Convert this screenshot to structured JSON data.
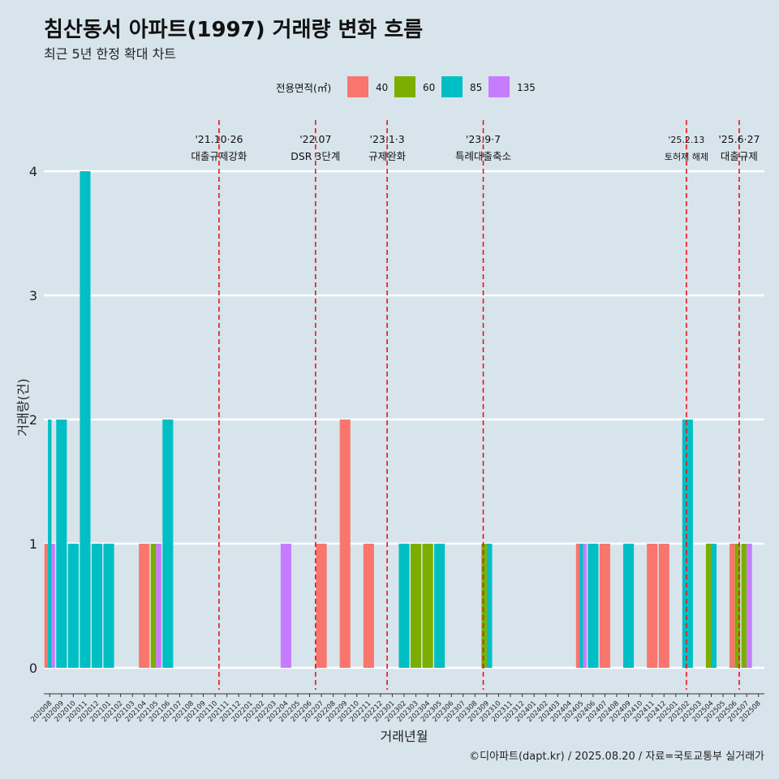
{
  "title": "침산동서 아파트(1997) 거래량 변화 흐름",
  "subtitle": "최근 5년 한정 확대 차트",
  "caption": "©디아파트(dapt.kr) / 2025.08.20 / 자료=국토교통부 실거래가",
  "legend_title": "전용면적(㎡)",
  "chart_data": {
    "type": "bar",
    "xlabel": "거래년월",
    "ylabel": "거래량(건)",
    "ylim": [
      0,
      4
    ],
    "yticks": [
      0,
      1,
      2,
      3,
      4
    ],
    "grid": true,
    "legend_position": "top",
    "categories": [
      "202008",
      "202009",
      "202010",
      "202011",
      "202012",
      "202101",
      "202102",
      "202103",
      "202104",
      "202105",
      "202106",
      "202107",
      "202108",
      "202109",
      "202110",
      "202111",
      "202112",
      "202201",
      "202202",
      "202203",
      "202204",
      "202205",
      "202206",
      "202207",
      "202208",
      "202209",
      "202210",
      "202211",
      "202212",
      "202301",
      "202302",
      "202303",
      "202304",
      "202305",
      "202306",
      "202307",
      "202308",
      "202309",
      "202310",
      "202311",
      "202312",
      "202401",
      "202402",
      "202403",
      "202404",
      "202405",
      "202406",
      "202407",
      "202408",
      "202409",
      "202410",
      "202411",
      "202412",
      "202501",
      "202502",
      "202503",
      "202504",
      "202505",
      "202506",
      "202507",
      "202508"
    ],
    "series": [
      {
        "name": "40",
        "color": "#f8766d",
        "values": [
          1,
          0,
          0,
          0,
          0,
          0,
          0,
          0,
          1,
          0,
          0,
          0,
          0,
          0,
          0,
          0,
          0,
          0,
          0,
          0,
          0,
          0,
          0,
          1,
          0,
          2,
          0,
          1,
          0,
          0,
          0,
          0,
          0,
          0,
          0,
          0,
          0,
          0,
          0,
          0,
          0,
          0,
          0,
          0,
          0,
          1,
          0,
          1,
          0,
          0,
          0,
          1,
          1,
          0,
          0,
          0,
          0,
          0,
          1,
          0,
          0
        ]
      },
      {
        "name": "60",
        "color": "#7cae00",
        "values": [
          0,
          0,
          0,
          0,
          0,
          0,
          0,
          0,
          0,
          1,
          0,
          0,
          0,
          0,
          0,
          0,
          0,
          0,
          0,
          0,
          0,
          0,
          0,
          0,
          0,
          0,
          0,
          0,
          0,
          0,
          0,
          1,
          1,
          0,
          0,
          0,
          0,
          1,
          0,
          0,
          0,
          0,
          0,
          0,
          0,
          0,
          0,
          0,
          0,
          0,
          0,
          0,
          0,
          0,
          0,
          0,
          1,
          0,
          1,
          1,
          0
        ]
      },
      {
        "name": "85",
        "color": "#00bfc4",
        "values": [
          2,
          2,
          1,
          4,
          1,
          1,
          0,
          0,
          0,
          0,
          2,
          0,
          0,
          0,
          0,
          0,
          0,
          0,
          0,
          0,
          0,
          0,
          0,
          0,
          0,
          0,
          0,
          0,
          0,
          0,
          1,
          0,
          0,
          1,
          0,
          0,
          0,
          1,
          0,
          0,
          0,
          0,
          0,
          0,
          0,
          1,
          1,
          0,
          0,
          1,
          0,
          0,
          0,
          0,
          2,
          0,
          1,
          0,
          0,
          0,
          0
        ]
      },
      {
        "name": "135",
        "color": "#c77cff",
        "values": [
          1,
          0,
          0,
          0,
          0,
          0,
          0,
          0,
          0,
          1,
          0,
          0,
          0,
          0,
          0,
          0,
          0,
          0,
          0,
          0,
          1,
          0,
          0,
          0,
          0,
          0,
          0,
          0,
          0,
          0,
          0,
          0,
          0,
          0,
          0,
          0,
          0,
          0,
          0,
          0,
          0,
          0,
          0,
          0,
          0,
          1,
          0,
          0,
          0,
          0,
          0,
          0,
          0,
          0,
          0,
          0,
          0,
          0,
          0,
          1,
          0
        ]
      }
    ],
    "events": [
      {
        "date": "'21.10·26",
        "label": "대출규제강화",
        "x": "202110",
        "day": 26
      },
      {
        "date": "'22.07",
        "label": "DSR 3단계",
        "x": "202207",
        "day": 1
      },
      {
        "date": "'23.1·3",
        "label": "규제완화",
        "x": "202301",
        "day": 3
      },
      {
        "date": "'23.9·7",
        "label": "특례대출축소",
        "x": "202309",
        "day": 7
      },
      {
        "date": "'25.2.13",
        "label": "토허제 해제",
        "x": "202502",
        "day": 13
      },
      {
        "date": "'25.6·27",
        "label": "대출규제",
        "x": "202506",
        "day": 27
      }
    ]
  }
}
